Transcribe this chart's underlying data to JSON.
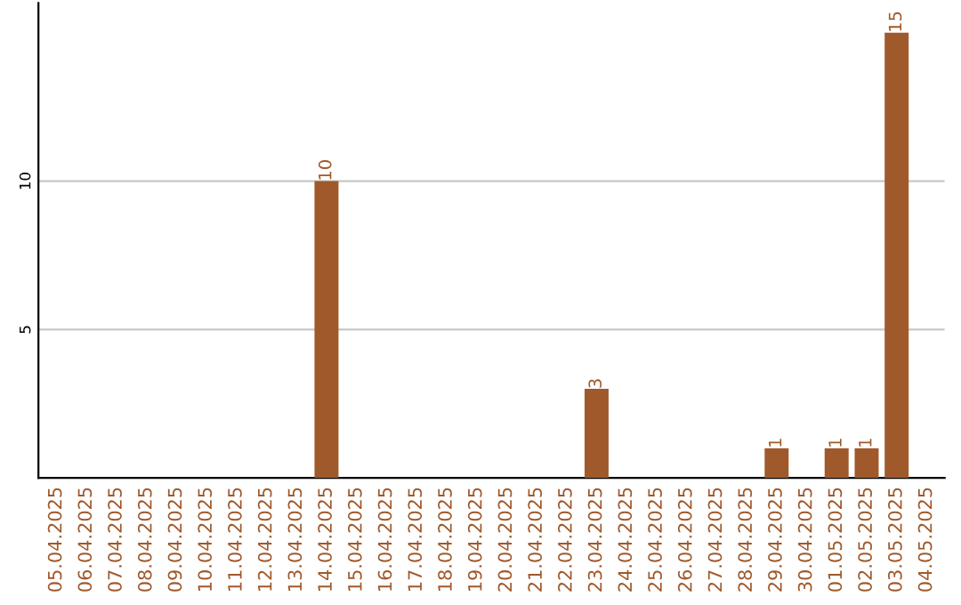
{
  "chart_data": {
    "type": "bar",
    "categories": [
      "05.04.2025",
      "06.04.2025",
      "07.04.2025",
      "08.04.2025",
      "09.04.2025",
      "10.04.2025",
      "11.04.2025",
      "12.04.2025",
      "13.04.2025",
      "14.04.2025",
      "15.04.2025",
      "16.04.2025",
      "17.04.2025",
      "18.04.2025",
      "19.04.2025",
      "20.04.2025",
      "21.04.2025",
      "22.04.2025",
      "23.04.2025",
      "24.04.2025",
      "25.04.2025",
      "26.04.2025",
      "27.04.2025",
      "28.04.2025",
      "29.04.2025",
      "30.04.2025",
      "01.05.2025",
      "02.05.2025",
      "03.05.2025",
      "04.05.2025"
    ],
    "values": [
      0,
      0,
      0,
      0,
      0,
      0,
      0,
      0,
      0,
      10,
      0,
      0,
      0,
      0,
      0,
      0,
      0,
      0,
      3,
      0,
      0,
      0,
      0,
      0,
      1,
      0,
      1,
      1,
      15,
      0
    ],
    "value_labels": [
      null,
      null,
      null,
      null,
      null,
      null,
      null,
      null,
      null,
      "10",
      null,
      null,
      null,
      null,
      null,
      null,
      null,
      null,
      "3",
      null,
      null,
      null,
      null,
      null,
      "1",
      null,
      "1",
      "1",
      "15",
      null
    ],
    "color": "#a0592b",
    "ylim": [
      0,
      16
    ],
    "yticks": [
      5,
      10
    ],
    "grid": "y",
    "legend": false
  }
}
